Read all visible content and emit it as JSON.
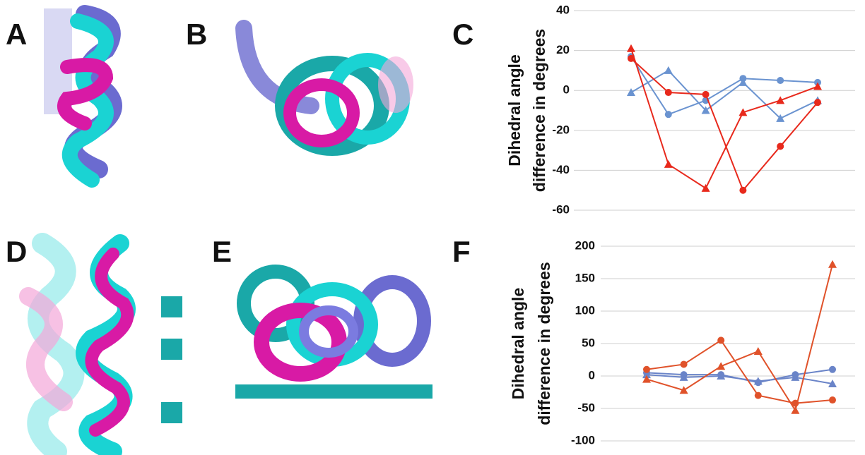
{
  "panel_labels": [
    "A",
    "B",
    "C",
    "D",
    "E",
    "F"
  ],
  "chart_data": [
    {
      "type": "line",
      "ylabel": [
        "Dihedral angle",
        "difference in degrees"
      ],
      "categories": [
        null,
        null,
        null,
        null,
        null,
        null
      ],
      "ylim": [
        -60,
        40
      ],
      "yticks": [
        -60,
        -40,
        -20,
        0,
        20,
        40
      ],
      "grid": true,
      "series": [
        {
          "color": "#6a93d0",
          "marker": "circle",
          "values": [
            17,
            -12,
            -5,
            6,
            5,
            4
          ]
        },
        {
          "color": "#6a93d0",
          "marker": "triangle",
          "values": [
            -1,
            10,
            -10,
            4,
            -14,
            -5
          ]
        },
        {
          "color": "#e8291c",
          "marker": "circle",
          "values": [
            16,
            -1,
            -2,
            -50,
            -28,
            -6
          ]
        },
        {
          "color": "#e8291c",
          "marker": "triangle",
          "values": [
            21,
            -37,
            -49,
            -11,
            -5,
            2
          ]
        }
      ]
    },
    {
      "type": "line",
      "ylabel": [
        "Dihedral angle",
        "difference in degrees"
      ],
      "categories": [
        null,
        null,
        null,
        null,
        null,
        null
      ],
      "ylim": [
        -100,
        200
      ],
      "yticks": [
        -100,
        -50,
        0,
        50,
        100,
        150,
        200
      ],
      "grid": true,
      "series": [
        {
          "color": "#6a84c8",
          "marker": "circle",
          "values": [
            5,
            2,
            2,
            -10,
            2,
            10
          ]
        },
        {
          "color": "#6a84c8",
          "marker": "triangle",
          "values": [
            2,
            -2,
            0,
            -8,
            -2,
            -12
          ]
        },
        {
          "color": "#e0522a",
          "marker": "circle",
          "values": [
            10,
            18,
            55,
            -30,
            -42,
            -37
          ]
        },
        {
          "color": "#e0522a",
          "marker": "triangle",
          "values": [
            -5,
            -22,
            15,
            38,
            -53,
            172
          ]
        }
      ]
    }
  ]
}
